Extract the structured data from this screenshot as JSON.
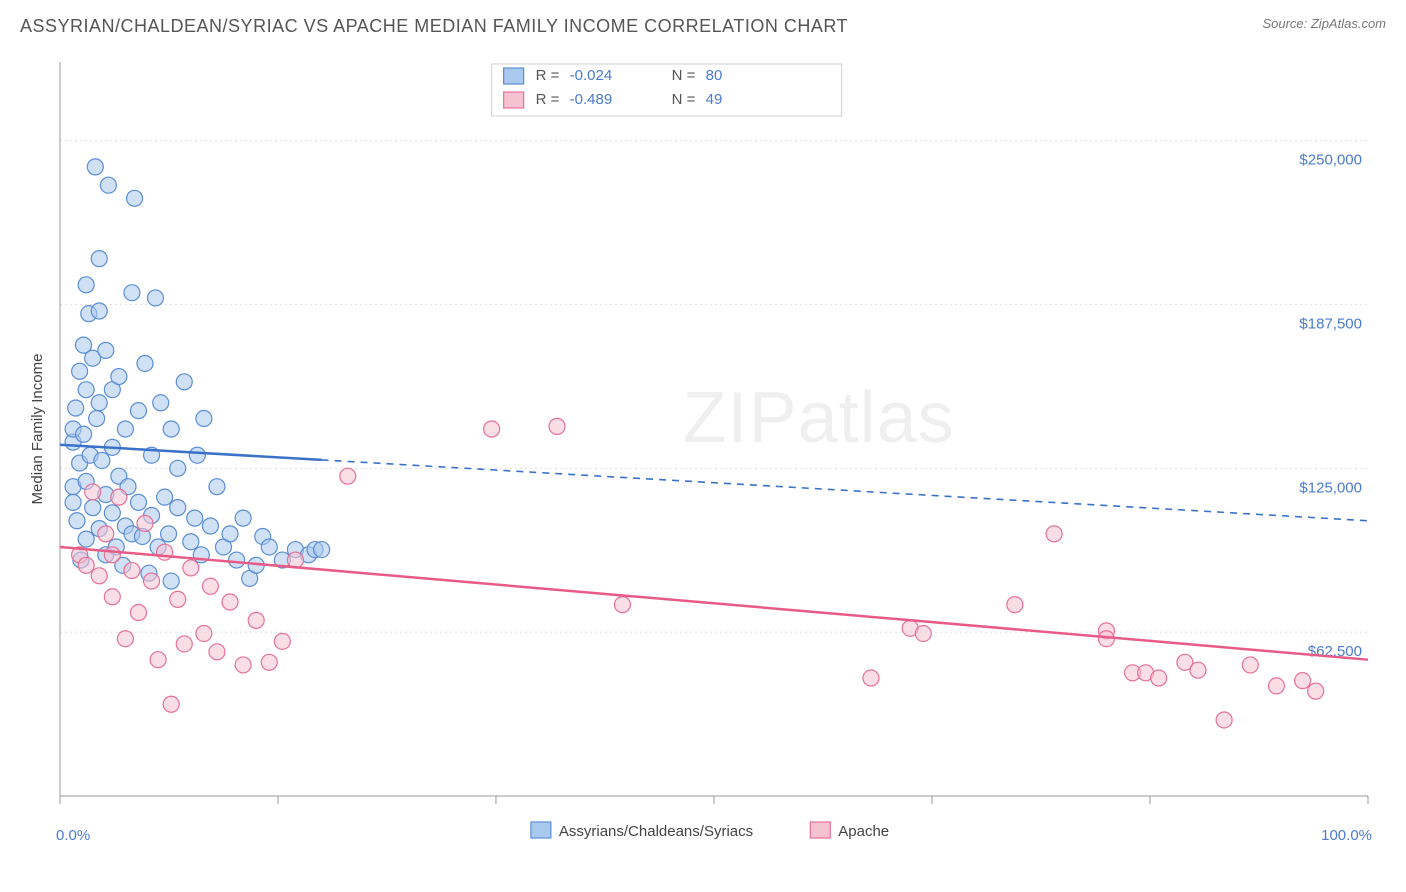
{
  "header": {
    "title": "ASSYRIAN/CHALDEAN/SYRIAC VS APACHE MEDIAN FAMILY INCOME CORRELATION CHART",
    "source": "Source: ZipAtlas.com"
  },
  "watermark": "ZIPatlas",
  "chart": {
    "type": "scatter",
    "background_color": "#ffffff",
    "grid_color": "#e0e0e0",
    "axis_color": "#999999",
    "ylabel": "Median Family Income",
    "xlim": [
      0,
      100
    ],
    "ylim": [
      0,
      280000
    ],
    "xticks": [
      0,
      100
    ],
    "xtick_labels": [
      "0.0%",
      "100.0%"
    ],
    "xtick_minor": [
      16.67,
      33.33,
      50,
      66.67,
      83.33
    ],
    "yticks": [
      62500,
      125000,
      187500,
      250000
    ],
    "ytick_labels": [
      "$62,500",
      "$125,000",
      "$187,500",
      "$250,000"
    ],
    "marker_radius": 8,
    "marker_opacity": 0.55,
    "series": [
      {
        "name": "Assyrians/Chaldeans/Syriacs",
        "fill": "#a9c9ee",
        "stroke": "#5a8ed6",
        "R": "-0.024",
        "N": "80",
        "trend": {
          "x1": 0,
          "y1": 134000,
          "x2": 100,
          "y2": 105000,
          "solid_until_x": 20,
          "color": "#3b72c9",
          "width": 2.5
        },
        "points": [
          [
            1,
            135000
          ],
          [
            1,
            118000
          ],
          [
            1,
            140000
          ],
          [
            1,
            112000
          ],
          [
            1.2,
            148000
          ],
          [
            1.3,
            105000
          ],
          [
            1.5,
            162000
          ],
          [
            1.5,
            127000
          ],
          [
            1.6,
            90000
          ],
          [
            1.8,
            172000
          ],
          [
            1.8,
            138000
          ],
          [
            2,
            195000
          ],
          [
            2,
            155000
          ],
          [
            2,
            120000
          ],
          [
            2,
            98000
          ],
          [
            2.2,
            184000
          ],
          [
            2.3,
            130000
          ],
          [
            2.5,
            110000
          ],
          [
            2.5,
            167000
          ],
          [
            2.7,
            240000
          ],
          [
            2.8,
            144000
          ],
          [
            3,
            185000
          ],
          [
            3,
            150000
          ],
          [
            3,
            102000
          ],
          [
            3,
            205000
          ],
          [
            3.2,
            128000
          ],
          [
            3.5,
            115000
          ],
          [
            3.5,
            170000
          ],
          [
            3.5,
            92000
          ],
          [
            3.7,
            233000
          ],
          [
            4,
            155000
          ],
          [
            4,
            133000
          ],
          [
            4,
            108000
          ],
          [
            4.3,
            95000
          ],
          [
            4.5,
            160000
          ],
          [
            4.5,
            122000
          ],
          [
            4.8,
            88000
          ],
          [
            5,
            140000
          ],
          [
            5,
            103000
          ],
          [
            5.2,
            118000
          ],
          [
            5.5,
            192000
          ],
          [
            5.5,
            100000
          ],
          [
            5.7,
            228000
          ],
          [
            6,
            147000
          ],
          [
            6,
            112000
          ],
          [
            6.3,
            99000
          ],
          [
            6.5,
            165000
          ],
          [
            6.8,
            85000
          ],
          [
            7,
            107000
          ],
          [
            7,
            130000
          ],
          [
            7.3,
            190000
          ],
          [
            7.5,
            95000
          ],
          [
            7.7,
            150000
          ],
          [
            8,
            114000
          ],
          [
            8.3,
            100000
          ],
          [
            8.5,
            140000
          ],
          [
            8.5,
            82000
          ],
          [
            9,
            110000
          ],
          [
            9,
            125000
          ],
          [
            9.5,
            158000
          ],
          [
            10,
            97000
          ],
          [
            10.3,
            106000
          ],
          [
            10.5,
            130000
          ],
          [
            10.8,
            92000
          ],
          [
            11,
            144000
          ],
          [
            11.5,
            103000
          ],
          [
            12,
            118000
          ],
          [
            12.5,
            95000
          ],
          [
            13,
            100000
          ],
          [
            13.5,
            90000
          ],
          [
            14,
            106000
          ],
          [
            14.5,
            83000
          ],
          [
            15,
            88000
          ],
          [
            15.5,
            99000
          ],
          [
            16,
            95000
          ],
          [
            17,
            90000
          ],
          [
            18,
            94000
          ],
          [
            19,
            92000
          ],
          [
            19.5,
            94000
          ],
          [
            20,
            94000
          ]
        ]
      },
      {
        "name": "Apache",
        "fill": "#f5c2d1",
        "stroke": "#e77096",
        "R": "-0.489",
        "N": "49",
        "trend": {
          "x1": 0,
          "y1": 95000,
          "x2": 100,
          "y2": 52000,
          "solid_until_x": 100,
          "color": "#e95b87",
          "width": 2.5
        },
        "points": [
          [
            1.5,
            92000
          ],
          [
            2,
            88000
          ],
          [
            2.5,
            116000
          ],
          [
            3,
            84000
          ],
          [
            3.5,
            100000
          ],
          [
            4,
            76000
          ],
          [
            4,
            92000
          ],
          [
            4.5,
            114000
          ],
          [
            5,
            60000
          ],
          [
            5.5,
            86000
          ],
          [
            6,
            70000
          ],
          [
            6.5,
            104000
          ],
          [
            7,
            82000
          ],
          [
            7.5,
            52000
          ],
          [
            8,
            93000
          ],
          [
            8.5,
            35000
          ],
          [
            9,
            75000
          ],
          [
            9.5,
            58000
          ],
          [
            10,
            87000
          ],
          [
            11,
            62000
          ],
          [
            11.5,
            80000
          ],
          [
            12,
            55000
          ],
          [
            13,
            74000
          ],
          [
            14,
            50000
          ],
          [
            15,
            67000
          ],
          [
            16,
            51000
          ],
          [
            17,
            59000
          ],
          [
            18,
            90000
          ],
          [
            22,
            122000
          ],
          [
            33,
            140000
          ],
          [
            38,
            141000
          ],
          [
            43,
            73000
          ],
          [
            62,
            45000
          ],
          [
            65,
            64000
          ],
          [
            66,
            62000
          ],
          [
            73,
            73000
          ],
          [
            76,
            100000
          ],
          [
            80,
            63000
          ],
          [
            80,
            60000
          ],
          [
            82,
            47000
          ],
          [
            83,
            47000
          ],
          [
            84,
            45000
          ],
          [
            86,
            51000
          ],
          [
            87,
            48000
          ],
          [
            89,
            29000
          ],
          [
            91,
            50000
          ],
          [
            93,
            42000
          ],
          [
            95,
            44000
          ],
          [
            96,
            40000
          ]
        ]
      }
    ],
    "bottom_legend": [
      {
        "label": "Assyrians/Chaldeans/Syriacs",
        "fill": "#a9c9ee",
        "stroke": "#5a8ed6"
      },
      {
        "label": "Apache",
        "fill": "#f5c2d1",
        "stroke": "#e77096"
      }
    ]
  }
}
